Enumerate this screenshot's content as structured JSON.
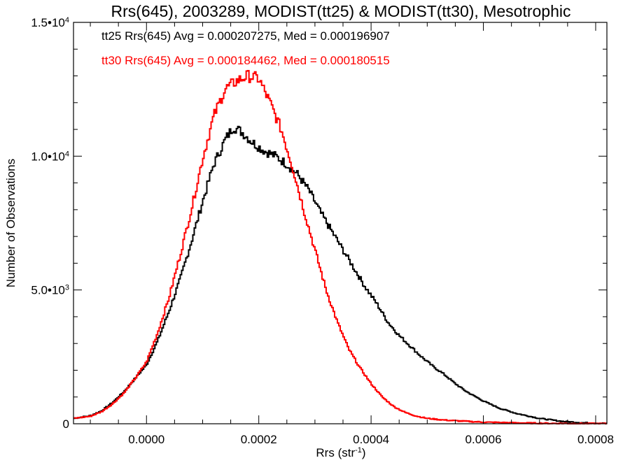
{
  "chart_data": {
    "type": "line",
    "title": "Rrs(645), 2003289, MODIST(tt25) & MODIST(tt30), Mesotrophic",
    "xlabel": "Rrs (str",
    "xlabel_sup": "-1",
    "xlabel_end": ")",
    "ylabel": "Number of Observations",
    "xlim": [
      -0.00013,
      0.00082
    ],
    "ylim": [
      0,
      15000
    ],
    "grid": false,
    "legend_placement": "top-left",
    "x_ticks": [
      {
        "value": 0.0,
        "label": "0.0000"
      },
      {
        "value": 0.0002,
        "label": "0.0002"
      },
      {
        "value": 0.0004,
        "label": "0.0004"
      },
      {
        "value": 0.0006,
        "label": "0.0006"
      },
      {
        "value": 0.0008,
        "label": "0.0008"
      }
    ],
    "y_ticks": [
      {
        "value": 0,
        "label": "0",
        "sup": ""
      },
      {
        "value": 5000,
        "label": "5.0•10",
        "sup": "3"
      },
      {
        "value": 10000,
        "label": "1.0•10",
        "sup": "4"
      },
      {
        "value": 15000,
        "label": "1.5•10",
        "sup": "4"
      }
    ],
    "annotations": [
      {
        "text": "tt25 Rrs(645) Avg = 0.000207275, Med = 0.000196907",
        "color": "#000000"
      },
      {
        "text": "tt30 Rrs(645) Avg = 0.000184462, Med = 0.000180515",
        "color": "#ff0000"
      }
    ],
    "series": [
      {
        "color": "#000000",
        "x": [
          -0.00013,
          -0.0001,
          -8e-05,
          -6e-05,
          -4e-05,
          -2e-05,
          0.0,
          2e-05,
          4e-05,
          6e-05,
          8e-05,
          0.0001,
          0.00012,
          0.00014,
          0.000155,
          0.00017,
          0.00019,
          0.00021,
          0.00023,
          0.00025,
          0.00027,
          0.00029,
          0.00031,
          0.00033,
          0.00035,
          0.00037,
          0.00039,
          0.00041,
          0.00043,
          0.00045,
          0.00047,
          0.00049,
          0.00051,
          0.00053,
          0.00055,
          0.00057,
          0.0006,
          0.00063,
          0.00066,
          0.0007,
          0.00074,
          0.00078,
          0.00082
        ],
        "y": [
          200,
          300,
          480,
          800,
          1200,
          1700,
          2200,
          3100,
          4200,
          5400,
          6800,
          8300,
          9700,
          10600,
          11100,
          10900,
          10500,
          10200,
          10000,
          9700,
          9300,
          8700,
          7900,
          7200,
          6500,
          5800,
          5100,
          4500,
          3800,
          3300,
          2900,
          2500,
          2150,
          1850,
          1500,
          1200,
          850,
          570,
          380,
          200,
          90,
          35,
          15
        ]
      },
      {
        "color": "#ff0000",
        "x": [
          -0.00013,
          -0.0001,
          -8e-05,
          -6e-05,
          -4e-05,
          -2e-05,
          0.0,
          2e-05,
          4e-05,
          6e-05,
          8e-05,
          0.0001,
          0.00012,
          0.00014,
          0.00016,
          0.00018,
          0.0002,
          0.00022,
          0.00024,
          0.00026,
          0.00028,
          0.0003,
          0.00032,
          0.00034,
          0.00036,
          0.00038,
          0.0004,
          0.00042,
          0.00044,
          0.00046,
          0.00048,
          0.0005,
          0.00053,
          0.00056,
          0.0006,
          0.00064,
          0.00068,
          0.00072,
          0.00076,
          0.00082
        ],
        "y": [
          200,
          280,
          450,
          750,
          1150,
          1700,
          2300,
          3400,
          4700,
          6300,
          8000,
          9900,
          11500,
          12500,
          12800,
          13000,
          12900,
          12000,
          11000,
          9600,
          8000,
          6500,
          5000,
          3800,
          2800,
          2100,
          1500,
          1000,
          650,
          430,
          290,
          200,
          140,
          100,
          60,
          40,
          25,
          15,
          10,
          5
        ]
      }
    ]
  }
}
